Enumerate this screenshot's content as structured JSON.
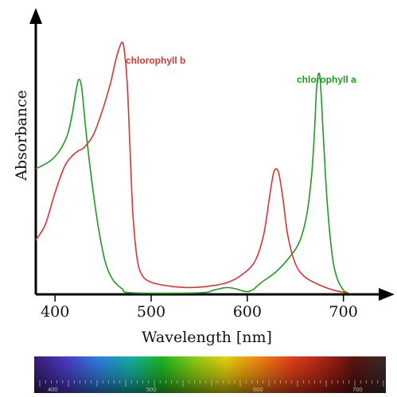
{
  "chart_data": {
    "type": "line",
    "xlabel": "Wavelength [nm]",
    "ylabel": "Absorbance",
    "xlim": [
      380,
      740
    ],
    "ylim": [
      0,
      1.05
    ],
    "x_ticks": [
      400,
      500,
      600,
      700
    ],
    "series": [
      {
        "name": "chlorophyll a",
        "color": "#1f9a1f",
        "points": [
          [
            380,
            0.47
          ],
          [
            395,
            0.5
          ],
          [
            405,
            0.54
          ],
          [
            413,
            0.6
          ],
          [
            418,
            0.68
          ],
          [
            422,
            0.77
          ],
          [
            425,
            0.81
          ],
          [
            428,
            0.77
          ],
          [
            432,
            0.62
          ],
          [
            438,
            0.43
          ],
          [
            445,
            0.25
          ],
          [
            452,
            0.12
          ],
          [
            460,
            0.05
          ],
          [
            470,
            0.015
          ],
          [
            480,
            0.0
          ],
          [
            550,
            0.0
          ],
          [
            565,
            0.01
          ],
          [
            578,
            0.02
          ],
          [
            588,
            0.015
          ],
          [
            598,
            0.005
          ],
          [
            605,
            0.01
          ],
          [
            615,
            0.04
          ],
          [
            630,
            0.08
          ],
          [
            645,
            0.14
          ],
          [
            655,
            0.2
          ],
          [
            662,
            0.3
          ],
          [
            667,
            0.45
          ],
          [
            670,
            0.62
          ],
          [
            672,
            0.77
          ],
          [
            674,
            0.83
          ],
          [
            676,
            0.8
          ],
          [
            679,
            0.6
          ],
          [
            683,
            0.35
          ],
          [
            688,
            0.15
          ],
          [
            693,
            0.06
          ],
          [
            700,
            0.01
          ],
          [
            705,
            0.0
          ]
        ]
      },
      {
        "name": "chlorophyll b",
        "color": "#dd3333",
        "points": [
          [
            380,
            0.2
          ],
          [
            390,
            0.26
          ],
          [
            400,
            0.38
          ],
          [
            410,
            0.48
          ],
          [
            418,
            0.52
          ],
          [
            425,
            0.54
          ],
          [
            430,
            0.55
          ],
          [
            440,
            0.6
          ],
          [
            450,
            0.7
          ],
          [
            458,
            0.8
          ],
          [
            463,
            0.88
          ],
          [
            467,
            0.93
          ],
          [
            470,
            0.95
          ],
          [
            472,
            0.92
          ],
          [
            475,
            0.8
          ],
          [
            478,
            0.55
          ],
          [
            481,
            0.3
          ],
          [
            485,
            0.14
          ],
          [
            490,
            0.07
          ],
          [
            500,
            0.04
          ],
          [
            520,
            0.025
          ],
          [
            540,
            0.02
          ],
          [
            560,
            0.025
          ],
          [
            580,
            0.04
          ],
          [
            595,
            0.07
          ],
          [
            608,
            0.12
          ],
          [
            617,
            0.22
          ],
          [
            623,
            0.36
          ],
          [
            627,
            0.45
          ],
          [
            630,
            0.47
          ],
          [
            633,
            0.45
          ],
          [
            637,
            0.36
          ],
          [
            642,
            0.22
          ],
          [
            650,
            0.11
          ],
          [
            660,
            0.06
          ],
          [
            675,
            0.03
          ],
          [
            690,
            0.01
          ],
          [
            703,
            0.0
          ]
        ]
      }
    ]
  },
  "spectrum_bar": {
    "tick_labels": [
      "400",
      "500",
      "600",
      "700"
    ],
    "colors": [
      "#3a1c71",
      "#4b3cc8",
      "#2f7fe0",
      "#16b0a8",
      "#1fb81f",
      "#8ccf14",
      "#e8d20e",
      "#f28a12",
      "#e8421a",
      "#b02518",
      "#5a1410",
      "#3a2a2a"
    ]
  }
}
